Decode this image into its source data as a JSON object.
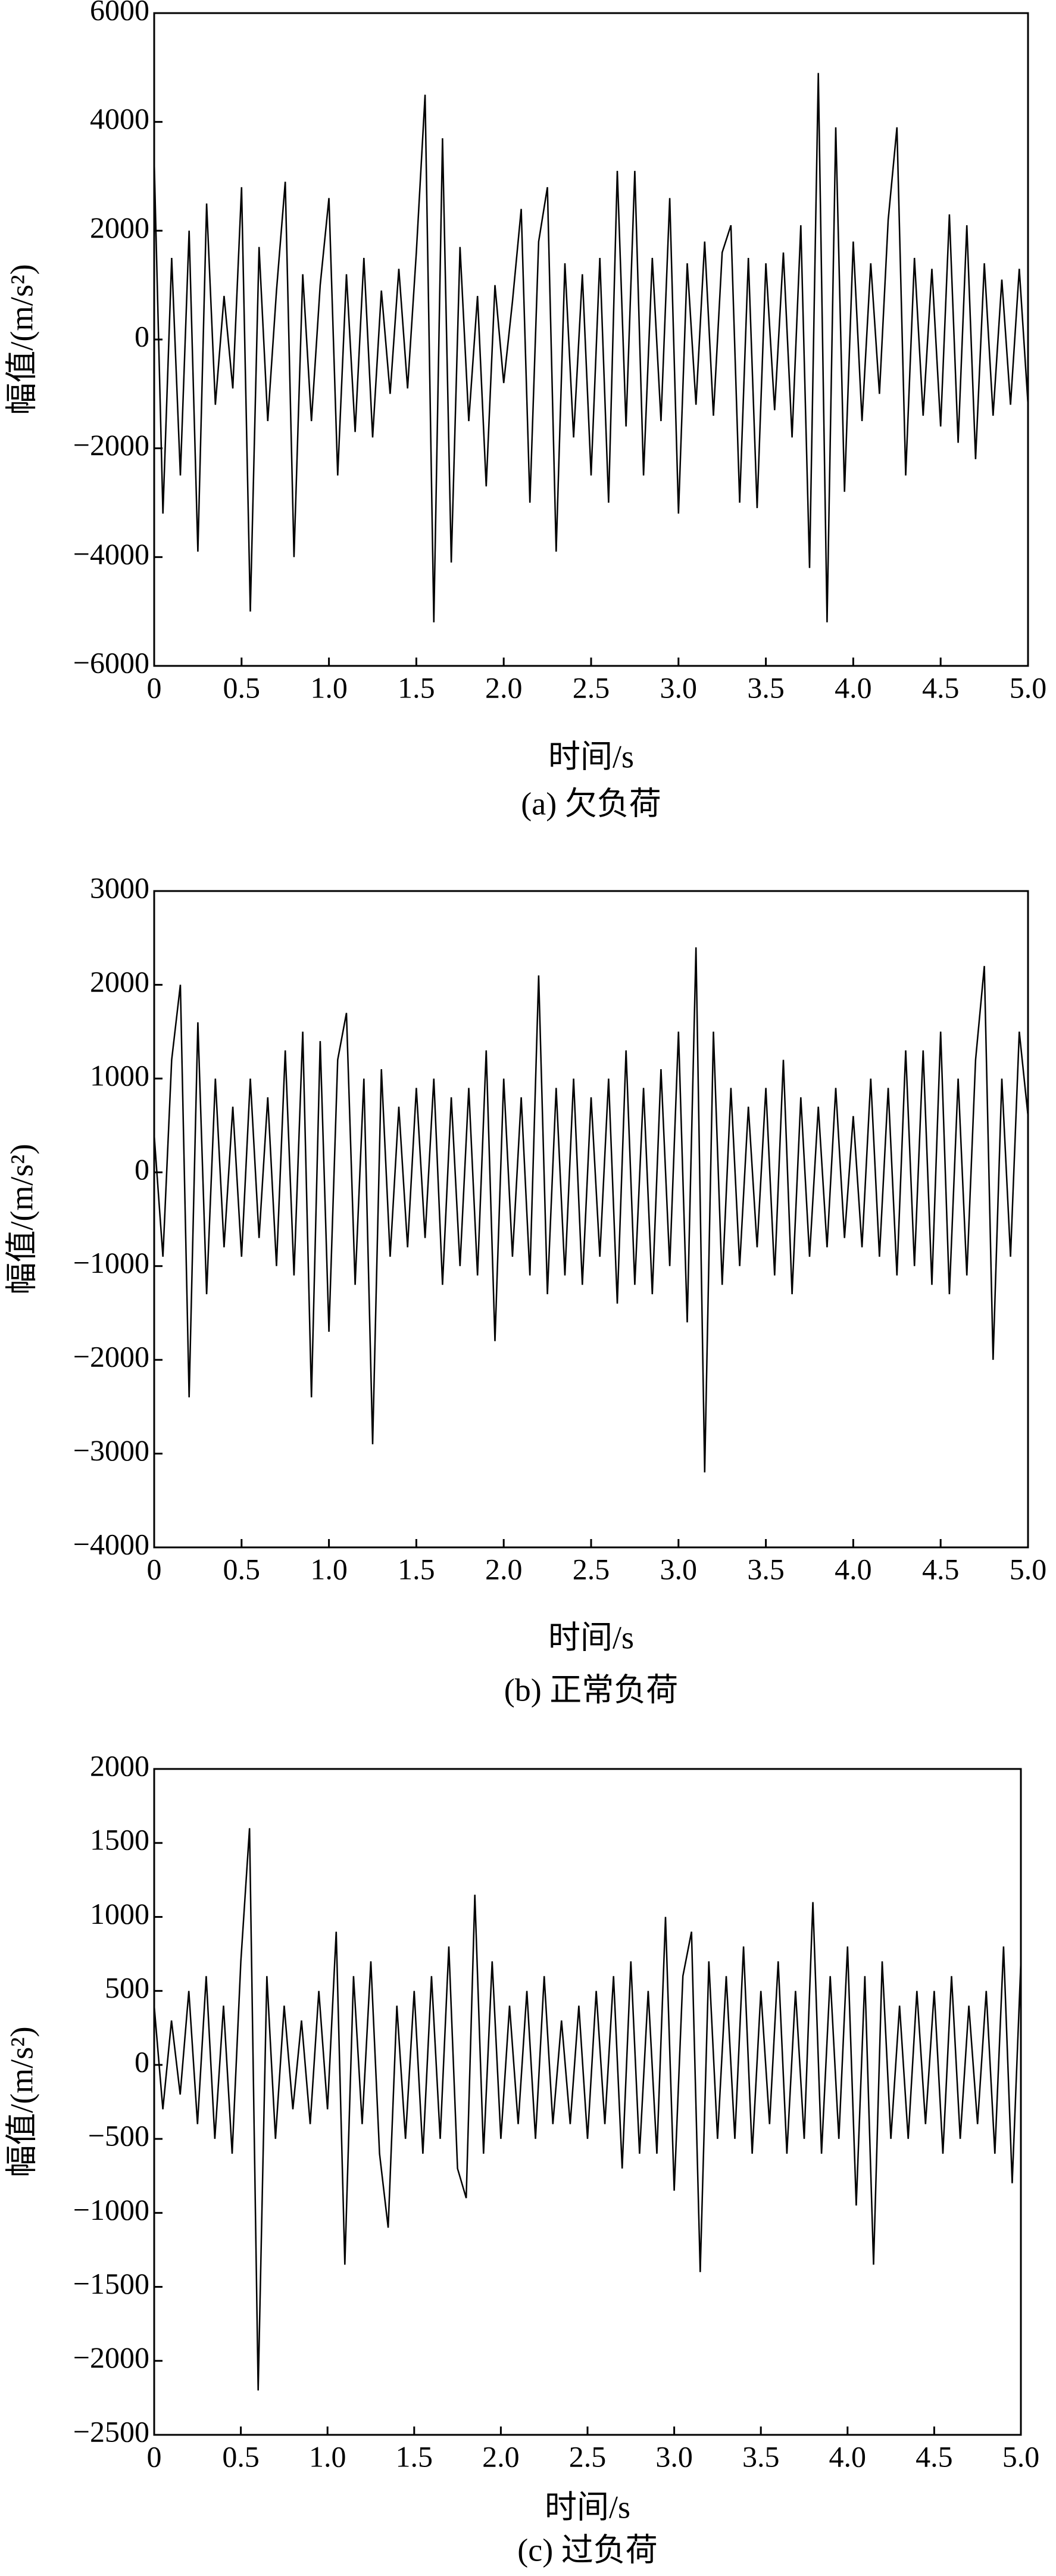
{
  "chart_data": [
    {
      "type": "line",
      "x_label": "时间/s",
      "y_label": "幅值/(m/s²)",
      "caption": "(a) 欠负荷",
      "color": "#000000",
      "x": [
        0,
        0.05,
        0.1,
        0.15,
        0.2,
        0.25,
        0.3,
        0.35,
        0.4,
        0.45,
        0.5,
        0.55,
        0.6,
        0.65,
        0.7,
        0.75,
        0.8,
        0.85,
        0.9,
        0.95,
        1,
        1.05,
        1.1,
        1.15,
        1.2,
        1.25,
        1.3,
        1.35,
        1.4,
        1.45,
        1.5,
        1.55,
        1.6,
        1.65,
        1.7,
        1.75,
        1.8,
        1.85,
        1.9,
        1.95,
        2,
        2.05,
        2.1,
        2.15,
        2.2,
        2.25,
        2.3,
        2.35,
        2.4,
        2.45,
        2.5,
        2.55,
        2.6,
        2.65,
        2.7,
        2.75,
        2.8,
        2.85,
        2.9,
        2.95,
        3,
        3.05,
        3.1,
        3.15,
        3.2,
        3.25,
        3.3,
        3.35,
        3.4,
        3.45,
        3.5,
        3.55,
        3.6,
        3.65,
        3.7,
        3.75,
        3.8,
        3.85,
        3.9,
        3.95,
        4,
        4.05,
        4.1,
        4.15,
        4.2,
        4.25,
        4.3,
        4.35,
        4.4,
        4.45,
        4.5,
        4.55,
        4.6,
        4.65,
        4.7,
        4.75,
        4.8,
        4.85,
        4.9,
        4.95,
        5
      ],
      "values": [
        3300,
        -3200,
        1500,
        -2500,
        2000,
        -3900,
        2500,
        -1200,
        800,
        -900,
        2800,
        -5000,
        1700,
        -1500,
        900,
        2900,
        -4000,
        1200,
        -1500,
        1000,
        2600,
        -2500,
        1200,
        -1700,
        1500,
        -1800,
        900,
        -1000,
        1300,
        -900,
        1600,
        4500,
        -5200,
        3700,
        -4100,
        1700,
        -1500,
        800,
        -2700,
        1000,
        -800,
        700,
        2400,
        -3000,
        1800,
        2800,
        -3900,
        1400,
        -1800,
        1200,
        -2500,
        1500,
        -3000,
        3100,
        -1600,
        3100,
        -2500,
        1500,
        -1500,
        2600,
        -3200,
        1400,
        -1200,
        1800,
        -1400,
        1600,
        2100,
        -3000,
        1500,
        -3100,
        1400,
        -1300,
        1600,
        -1800,
        2100,
        -4200,
        4900,
        -5200,
        3900,
        -2800,
        1800,
        -1500,
        1400,
        -1000,
        2200,
        3900,
        -2500,
        1500,
        -1400,
        1300,
        -1600,
        2300,
        -1900,
        2100,
        -2200,
        1400,
        -1400,
        1100,
        -1200,
        1300,
        -1200
      ],
      "xlim": [
        0,
        5
      ],
      "ylim": [
        -6000,
        6000
      ],
      "xticks": [
        0,
        0.5,
        {
          "value": 1,
          "label": "1.0"
        },
        1.5,
        {
          "value": 2,
          "label": "2.0"
        },
        2.5,
        {
          "value": 3,
          "label": "3.0"
        },
        3.5,
        {
          "value": 4,
          "label": "4.0"
        },
        4.5,
        {
          "value": 5,
          "label": "5.0"
        }
      ],
      "yticks": [
        {
          "value": -6000,
          "label": "−6000"
        },
        {
          "value": -4000,
          "label": "−4000"
        },
        {
          "value": -2000,
          "label": "−2000"
        },
        0,
        2000,
        4000,
        6000
      ]
    },
    {
      "type": "line",
      "x_label": "时间/s",
      "y_label": "幅值/(m/s²)",
      "caption": "(b) 正常负荷",
      "color": "#000000",
      "x": [
        0,
        0.05,
        0.1,
        0.15,
        0.2,
        0.25,
        0.3,
        0.35,
        0.4,
        0.45,
        0.5,
        0.55,
        0.6,
        0.65,
        0.7,
        0.75,
        0.8,
        0.85,
        0.9,
        0.95,
        1,
        1.05,
        1.1,
        1.15,
        1.2,
        1.25,
        1.3,
        1.35,
        1.4,
        1.45,
        1.5,
        1.55,
        1.6,
        1.65,
        1.7,
        1.75,
        1.8,
        1.85,
        1.9,
        1.95,
        2,
        2.05,
        2.1,
        2.15,
        2.2,
        2.25,
        2.3,
        2.35,
        2.4,
        2.45,
        2.5,
        2.55,
        2.6,
        2.65,
        2.7,
        2.75,
        2.8,
        2.85,
        2.9,
        2.95,
        3,
        3.05,
        3.1,
        3.15,
        3.2,
        3.25,
        3.3,
        3.35,
        3.4,
        3.45,
        3.5,
        3.55,
        3.6,
        3.65,
        3.7,
        3.75,
        3.8,
        3.85,
        3.9,
        3.95,
        4,
        4.05,
        4.1,
        4.15,
        4.2,
        4.25,
        4.3,
        4.35,
        4.4,
        4.45,
        4.5,
        4.55,
        4.6,
        4.65,
        4.7,
        4.75,
        4.8,
        4.85,
        4.9,
        4.95,
        5
      ],
      "values": [
        400,
        -900,
        1200,
        2000,
        -2400,
        1600,
        -1300,
        1000,
        -800,
        700,
        -900,
        1000,
        -700,
        800,
        -1000,
        1300,
        -1100,
        1500,
        -2400,
        1400,
        -1700,
        1200,
        1700,
        -1200,
        1000,
        -2900,
        1100,
        -900,
        700,
        -800,
        900,
        -700,
        1000,
        -1200,
        800,
        -1000,
        900,
        -1100,
        1300,
        -1800,
        1000,
        -900,
        800,
        -1100,
        2100,
        -1300,
        900,
        -1100,
        1000,
        -1200,
        800,
        -900,
        1000,
        -1400,
        1300,
        -1200,
        900,
        -1300,
        1100,
        -1000,
        1500,
        -1600,
        2400,
        -3200,
        1500,
        -1200,
        900,
        -1000,
        700,
        -800,
        900,
        -1100,
        1200,
        -1300,
        800,
        -900,
        700,
        -800,
        900,
        -700,
        600,
        -800,
        1000,
        -900,
        900,
        -1100,
        1300,
        -1000,
        1300,
        -1200,
        1500,
        -1300,
        1000,
        -1100,
        1200,
        2200,
        -2000,
        1000,
        -900,
        1500,
        600
      ],
      "xlim": [
        0,
        5
      ],
      "ylim": [
        -4000,
        3000
      ],
      "xticks": [
        0,
        0.5,
        {
          "value": 1,
          "label": "1.0"
        },
        1.5,
        {
          "value": 2,
          "label": "2.0"
        },
        2.5,
        {
          "value": 3,
          "label": "3.0"
        },
        3.5,
        {
          "value": 4,
          "label": "4.0"
        },
        4.5,
        {
          "value": 5,
          "label": "5.0"
        }
      ],
      "yticks": [
        {
          "value": -4000,
          "label": "−4000"
        },
        {
          "value": -3000,
          "label": "−3000"
        },
        {
          "value": -2000,
          "label": "−2000"
        },
        {
          "value": -1000,
          "label": "−1000"
        },
        0,
        1000,
        2000,
        3000
      ]
    },
    {
      "type": "line",
      "x_label": "时间/s",
      "y_label": "幅值/(m/s²)",
      "caption": "(c) 过负荷",
      "color": "#000000",
      "x": [
        0,
        0.05,
        0.1,
        0.15,
        0.2,
        0.25,
        0.3,
        0.35,
        0.4,
        0.45,
        0.5,
        0.55,
        0.6,
        0.65,
        0.7,
        0.75,
        0.8,
        0.85,
        0.9,
        0.95,
        1,
        1.05,
        1.1,
        1.15,
        1.2,
        1.25,
        1.3,
        1.35,
        1.4,
        1.45,
        1.5,
        1.55,
        1.6,
        1.65,
        1.7,
        1.75,
        1.8,
        1.85,
        1.9,
        1.95,
        2,
        2.05,
        2.1,
        2.15,
        2.2,
        2.25,
        2.3,
        2.35,
        2.4,
        2.45,
        2.5,
        2.55,
        2.6,
        2.65,
        2.7,
        2.75,
        2.8,
        2.85,
        2.9,
        2.95,
        3,
        3.05,
        3.1,
        3.15,
        3.2,
        3.25,
        3.3,
        3.35,
        3.4,
        3.45,
        3.5,
        3.55,
        3.6,
        3.65,
        3.7,
        3.75,
        3.8,
        3.85,
        3.9,
        3.95,
        4,
        4.05,
        4.1,
        4.15,
        4.2,
        4.25,
        4.3,
        4.35,
        4.4,
        4.45,
        4.5,
        4.55,
        4.6,
        4.65,
        4.7,
        4.75,
        4.8,
        4.85,
        4.9,
        4.95,
        5
      ],
      "values": [
        400,
        -300,
        300,
        -200,
        500,
        -400,
        600,
        -500,
        400,
        -600,
        700,
        1600,
        -2200,
        600,
        -500,
        400,
        -300,
        300,
        -400,
        500,
        -300,
        900,
        -1350,
        600,
        -400,
        700,
        -600,
        -1100,
        400,
        -500,
        500,
        -600,
        600,
        -500,
        800,
        -700,
        -900,
        1150,
        -600,
        700,
        -500,
        400,
        -400,
        500,
        -500,
        600,
        -400,
        300,
        -400,
        400,
        -500,
        500,
        -400,
        600,
        -700,
        700,
        -600,
        500,
        -600,
        1000,
        -850,
        600,
        900,
        -1400,
        700,
        -500,
        600,
        -500,
        800,
        -600,
        500,
        -400,
        700,
        -600,
        500,
        -500,
        1100,
        -600,
        600,
        -500,
        800,
        -950,
        600,
        -1350,
        700,
        -500,
        400,
        -500,
        500,
        -400,
        500,
        -600,
        600,
        -500,
        400,
        -400,
        500,
        -600,
        800,
        -800,
        700
      ],
      "xlim": [
        0,
        5
      ],
      "ylim": [
        -2500,
        2000
      ],
      "xticks": [
        0,
        0.5,
        {
          "value": 1,
          "label": "1.0"
        },
        1.5,
        {
          "value": 2,
          "label": "2.0"
        },
        2.5,
        {
          "value": 3,
          "label": "3.0"
        },
        3.5,
        {
          "value": 4,
          "label": "4.0"
        },
        4.5,
        {
          "value": 5,
          "label": "5.0"
        }
      ],
      "yticks": [
        {
          "value": -2500,
          "label": "−2500"
        },
        {
          "value": -2000,
          "label": "−2000"
        },
        {
          "value": -1500,
          "label": "−1500"
        },
        {
          "value": -1000,
          "label": "−1000"
        },
        {
          "value": -500,
          "label": "−500"
        },
        0,
        500,
        1000,
        1500,
        2000
      ]
    }
  ]
}
